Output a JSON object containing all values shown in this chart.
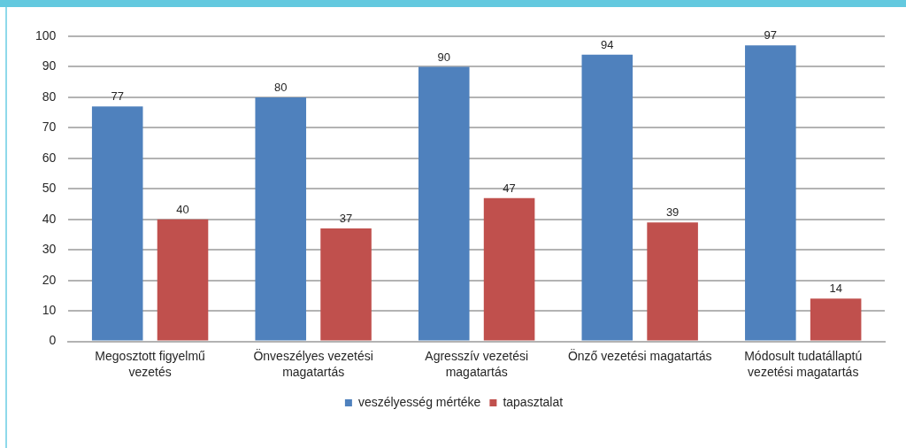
{
  "chart_data": {
    "type": "bar",
    "categories": [
      "Megosztott figyelmű vezetés",
      "Önveszélyes vezetési magatartás",
      "Agresszív vezetési magatartás",
      "Önző vezetési magatartás",
      "Módosult tudatállaptú vezetési magatartás"
    ],
    "series": [
      {
        "name": "veszélyesség mértéke",
        "color": "#4f81bd",
        "values": [
          77,
          80,
          90,
          94,
          97
        ]
      },
      {
        "name": "tapasztalat",
        "color": "#c0504d",
        "values": [
          40,
          37,
          47,
          39,
          14
        ]
      }
    ],
    "ylim": [
      0,
      100
    ],
    "yticks": [
      0,
      10,
      20,
      30,
      40,
      50,
      60,
      70,
      80,
      90,
      100
    ],
    "grid": "y",
    "legend": "bottom",
    "data_labels": true
  }
}
